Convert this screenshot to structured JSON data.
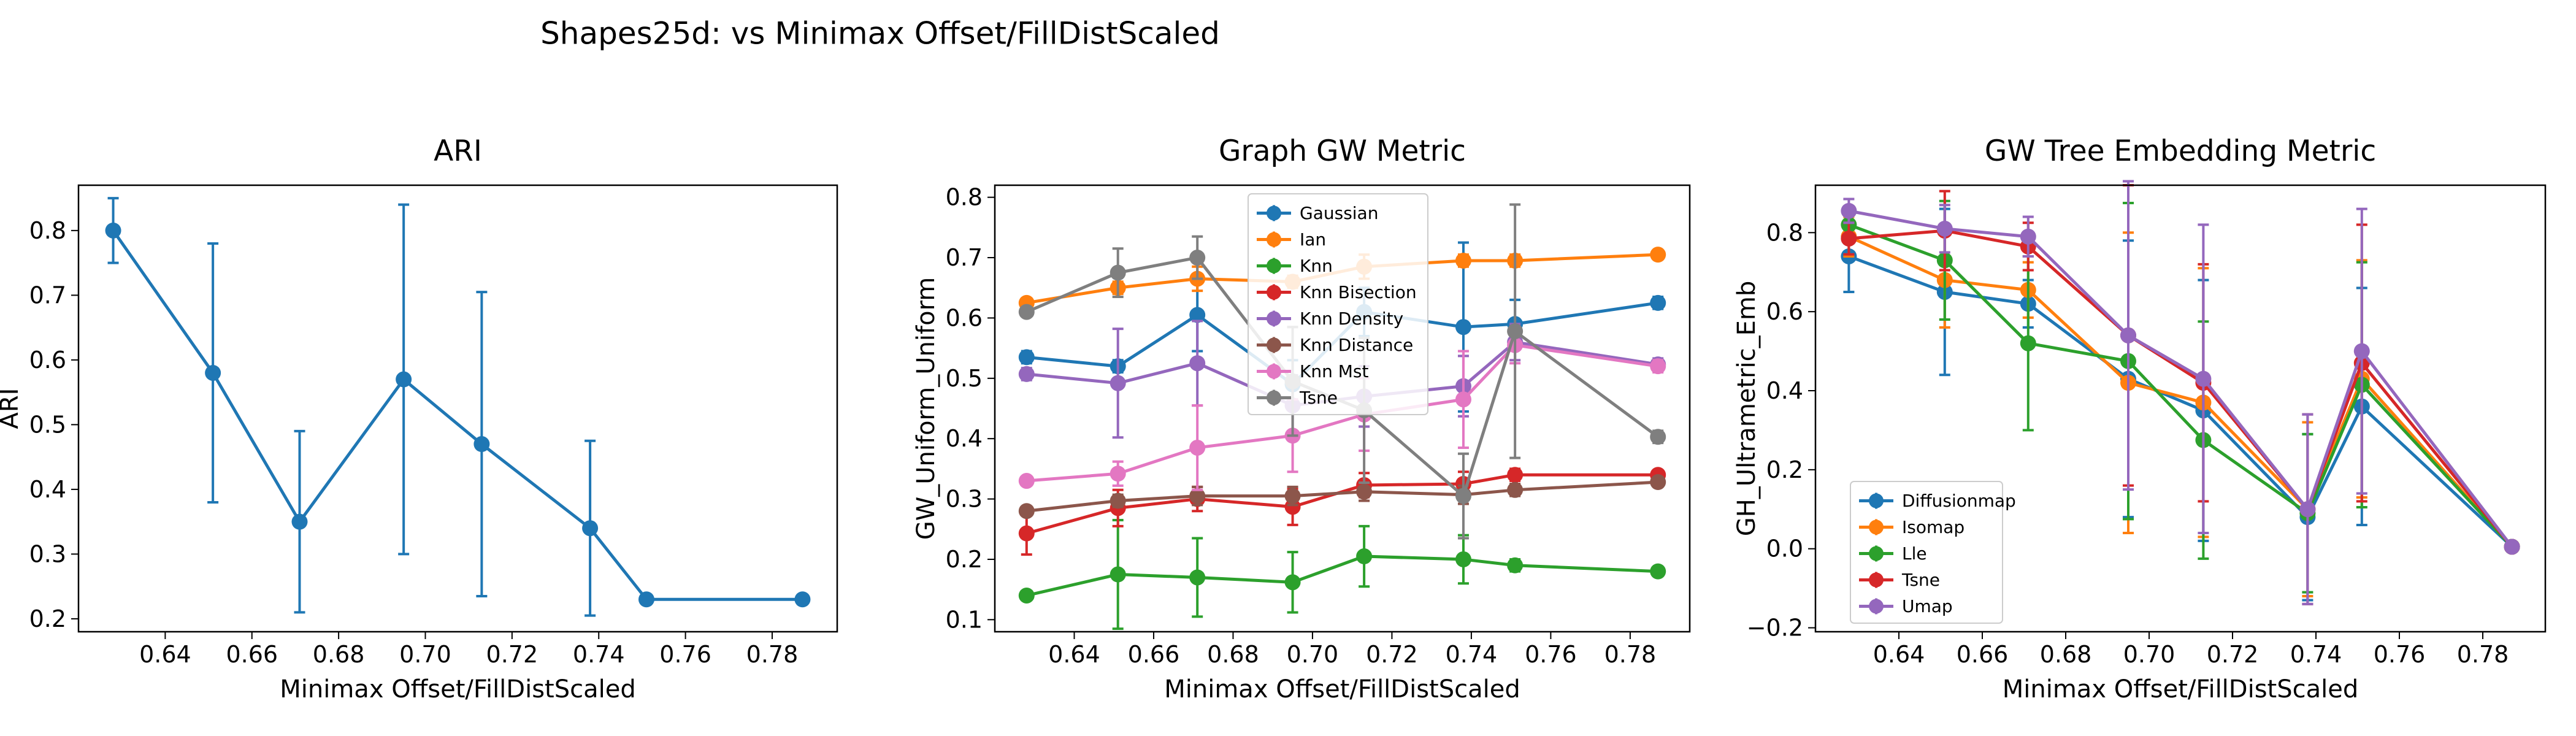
{
  "figure_title": "Shapes25d: vs Minimax Offset/FillDistScaled",
  "chart_data": [
    {
      "type": "line",
      "title": "ARI",
      "xlabel": "Minimax Offset/FillDistScaled",
      "ylabel": "ARI",
      "xlim": [
        0.62,
        0.795
      ],
      "ylim": [
        0.18,
        0.87
      ],
      "xticks": [
        0.64,
        0.66,
        0.68,
        0.7,
        0.72,
        0.74,
        0.76,
        0.78
      ],
      "xtick_labels": [
        "0.64",
        "0.66",
        "0.68",
        "0.70",
        "0.72",
        "0.74",
        "0.76",
        "0.78"
      ],
      "yticks": [
        0.2,
        0.3,
        0.4,
        0.5,
        0.6,
        0.7,
        0.8
      ],
      "ytick_labels": [
        "0.2",
        "0.3",
        "0.4",
        "0.5",
        "0.6",
        "0.7",
        "0.8"
      ],
      "x": [
        0.628,
        0.651,
        0.671,
        0.695,
        0.713,
        0.738,
        0.751,
        0.787
      ],
      "grid": false,
      "legend": "none",
      "series": [
        {
          "color": "#1f77b4",
          "values": [
            0.8,
            0.58,
            0.35,
            0.57,
            0.47,
            0.34,
            0.23,
            0.23
          ],
          "errors": [
            0.05,
            0.2,
            0.14,
            0.27,
            0.235,
            0.135,
            0.0,
            0.0
          ]
        }
      ]
    },
    {
      "type": "line",
      "title": "Graph GW Metric",
      "xlabel": "Minimax Offset/FillDistScaled",
      "ylabel": "GW_Uniform_Uniform",
      "xlim": [
        0.62,
        0.795
      ],
      "ylim": [
        0.08,
        0.82
      ],
      "xticks": [
        0.64,
        0.66,
        0.68,
        0.7,
        0.72,
        0.74,
        0.76,
        0.78
      ],
      "xtick_labels": [
        "0.64",
        "0.66",
        "0.68",
        "0.70",
        "0.72",
        "0.74",
        "0.76",
        "0.78"
      ],
      "yticks": [
        0.1,
        0.2,
        0.3,
        0.4,
        0.5,
        0.6,
        0.7,
        0.8
      ],
      "ytick_labels": [
        "0.1",
        "0.2",
        "0.3",
        "0.4",
        "0.5",
        "0.6",
        "0.7",
        "0.8"
      ],
      "x": [
        0.628,
        0.651,
        0.671,
        0.695,
        0.713,
        0.738,
        0.751,
        0.787
      ],
      "grid": false,
      "legend": "upper center",
      "series": [
        {
          "name": "Gaussian",
          "color": "#1f77b4",
          "values": [
            0.535,
            0.52,
            0.605,
            0.49,
            0.61,
            0.585,
            0.59,
            0.625
          ],
          "errors": [
            0.01,
            0.01,
            0.06,
            0.04,
            0.04,
            0.14,
            0.04,
            0.01
          ]
        },
        {
          "name": "Ian",
          "color": "#ff7f0e",
          "values": [
            0.625,
            0.65,
            0.665,
            0.66,
            0.685,
            0.695,
            0.695,
            0.705
          ],
          "errors": [
            0.005,
            0.01,
            0.02,
            0.01,
            0.02,
            0.01,
            0.01,
            0.005
          ]
        },
        {
          "name": "Knn",
          "color": "#2ca02c",
          "values": [
            0.14,
            0.175,
            0.17,
            0.162,
            0.205,
            0.2,
            0.19,
            0.18
          ],
          "errors": [
            0.005,
            0.09,
            0.065,
            0.05,
            0.05,
            0.04,
            0.01,
            0.005
          ]
        },
        {
          "name": "Knn Bisection",
          "color": "#d62728",
          "values": [
            0.243,
            0.285,
            0.3,
            0.287,
            0.323,
            0.325,
            0.34,
            0.34
          ],
          "errors": [
            0.035,
            0.03,
            0.02,
            0.03,
            0.02,
            0.02,
            0.01,
            0.005
          ]
        },
        {
          "name": "Knn Density",
          "color": "#9467bd",
          "values": [
            0.507,
            0.492,
            0.525,
            0.455,
            0.47,
            0.487,
            0.56,
            0.523
          ],
          "errors": [
            0.01,
            0.09,
            0.07,
            0.05,
            0.05,
            0.05,
            0.03,
            0.01
          ]
        },
        {
          "name": "Knn Distance",
          "color": "#8c564b",
          "values": [
            0.28,
            0.297,
            0.305,
            0.305,
            0.312,
            0.307,
            0.315,
            0.328
          ],
          "errors": [
            0.005,
            0.01,
            0.015,
            0.015,
            0.015,
            0.015,
            0.01,
            0.005
          ]
        },
        {
          "name": "Knn Mst",
          "color": "#e377c2",
          "values": [
            0.33,
            0.342,
            0.385,
            0.405,
            0.44,
            0.465,
            0.555,
            0.52
          ],
          "errors": [
            0.005,
            0.02,
            0.07,
            0.06,
            0.06,
            0.08,
            0.03,
            0.01
          ]
        },
        {
          "name": "Tsne",
          "color": "#7f7f7f",
          "values": [
            0.61,
            0.675,
            0.7,
            0.495,
            0.447,
            0.305,
            0.578,
            0.403
          ],
          "errors": [
            0.005,
            0.04,
            0.035,
            0.09,
            0.12,
            0.07,
            0.21,
            0.01
          ]
        }
      ]
    },
    {
      "type": "line",
      "title": "GW Tree Embedding Metric",
      "xlabel": "Minimax Offset/FillDistScaled",
      "ylabel": "GH_Ultrametric_Emb",
      "xlim": [
        0.62,
        0.795
      ],
      "ylim": [
        -0.21,
        0.92
      ],
      "xticks": [
        0.64,
        0.66,
        0.68,
        0.7,
        0.72,
        0.74,
        0.76,
        0.78
      ],
      "xtick_labels": [
        "0.64",
        "0.66",
        "0.68",
        "0.70",
        "0.72",
        "0.74",
        "0.76",
        "0.78"
      ],
      "yticks": [
        -0.2,
        0.0,
        0.2,
        0.4,
        0.6,
        0.8
      ],
      "ytick_labels": [
        "−0.2",
        "0.0",
        "0.2",
        "0.4",
        "0.6",
        "0.8"
      ],
      "x": [
        0.628,
        0.651,
        0.671,
        0.695,
        0.713,
        0.738,
        0.751,
        0.787
      ],
      "grid": false,
      "legend": "lower left",
      "series": [
        {
          "name": "Diffusionmap",
          "color": "#1f77b4",
          "values": [
            0.74,
            0.65,
            0.62,
            0.43,
            0.35,
            0.08,
            0.36,
            0.005
          ],
          "errors": [
            0.09,
            0.21,
            0.06,
            0.35,
            0.33,
            0.21,
            0.3,
            0.01
          ]
        },
        {
          "name": "Isomap",
          "color": "#ff7f0e",
          "values": [
            0.79,
            0.68,
            0.655,
            0.42,
            0.37,
            0.1,
            0.43,
            0.005
          ],
          "errors": [
            0.05,
            0.12,
            0.07,
            0.38,
            0.34,
            0.22,
            0.3,
            0.01
          ]
        },
        {
          "name": "Lle",
          "color": "#2ca02c",
          "values": [
            0.82,
            0.73,
            0.52,
            0.475,
            0.275,
            0.09,
            0.415,
            0.005
          ],
          "errors": [
            0.04,
            0.15,
            0.22,
            0.4,
            0.3,
            0.2,
            0.31,
            0.01
          ]
        },
        {
          "name": "Tsne",
          "color": "#d62728",
          "values": [
            0.785,
            0.805,
            0.765,
            0.54,
            0.42,
            0.1,
            0.47,
            0.005
          ],
          "errors": [
            0.04,
            0.1,
            0.06,
            0.38,
            0.3,
            0.24,
            0.35,
            0.01
          ]
        },
        {
          "name": "Umap",
          "color": "#9467bd",
          "values": [
            0.855,
            0.81,
            0.79,
            0.54,
            0.43,
            0.1,
            0.5,
            0.005
          ],
          "errors": [
            0.03,
            0.06,
            0.05,
            0.39,
            0.39,
            0.24,
            0.36,
            0.01
          ]
        }
      ]
    }
  ]
}
